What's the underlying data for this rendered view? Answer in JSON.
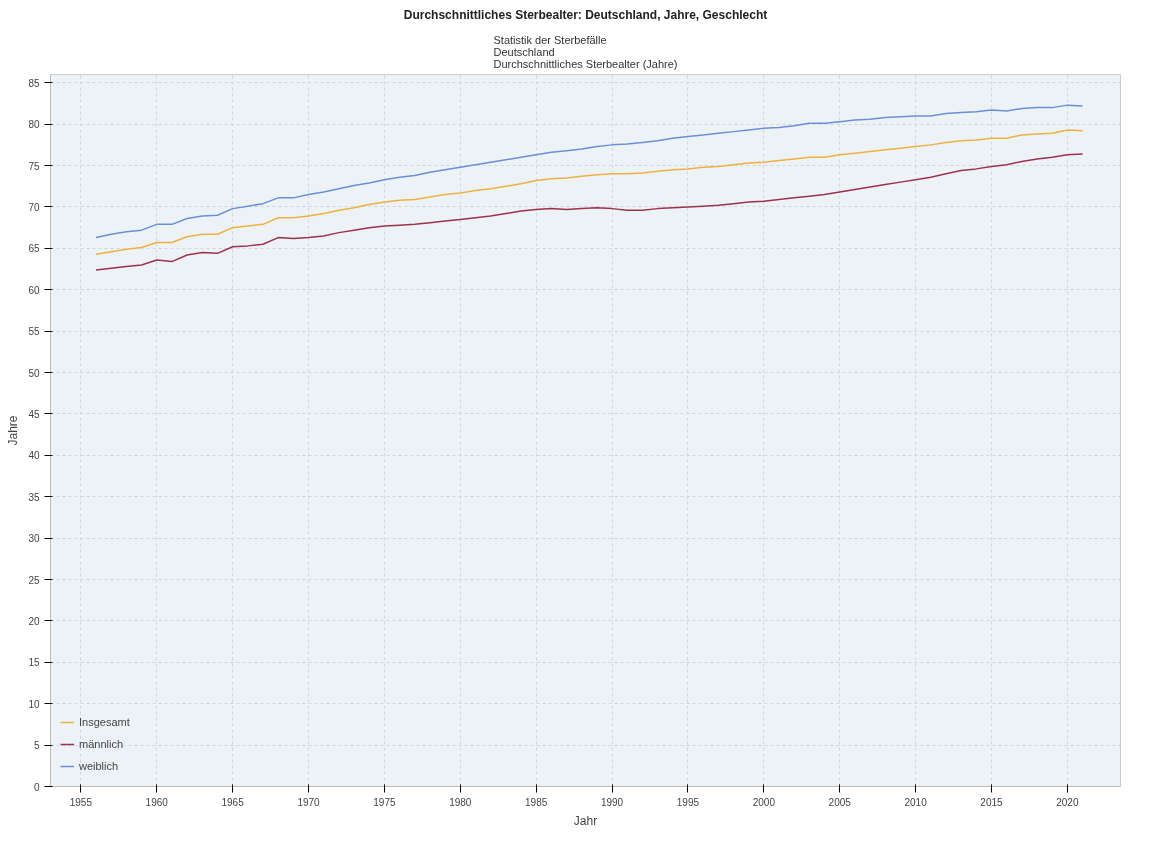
{
  "chart_data": {
    "type": "line",
    "title": "Durchschnittliches Sterbealter: Deutschland, Jahre, Geschlecht",
    "subtitle": "Statistik der Sterbefälle\nDeutschland\nDurchschnittliches Sterbealter (Jahre)",
    "xlabel": "Jahr",
    "ylabel": "Jahre",
    "x": [
      1956,
      1957,
      1958,
      1959,
      1960,
      1961,
      1962,
      1963,
      1964,
      1965,
      1966,
      1967,
      1968,
      1969,
      1970,
      1971,
      1972,
      1973,
      1974,
      1975,
      1976,
      1977,
      1978,
      1979,
      1980,
      1981,
      1982,
      1983,
      1984,
      1985,
      1986,
      1987,
      1988,
      1989,
      1990,
      1991,
      1992,
      1993,
      1994,
      1995,
      1996,
      1997,
      1998,
      1999,
      2000,
      2001,
      2002,
      2003,
      2004,
      2005,
      2006,
      2007,
      2008,
      2009,
      2010,
      2011,
      2012,
      2013,
      2014,
      2015,
      2016,
      2017,
      2018,
      2019,
      2020,
      2021
    ],
    "series": [
      {
        "name": "Insgesamt",
        "color": "#f0b040",
        "values": [
          64.3,
          64.6,
          64.9,
          65.1,
          65.7,
          65.7,
          66.4,
          66.7,
          66.7,
          67.5,
          67.7,
          67.9,
          68.7,
          68.7,
          68.9,
          69.2,
          69.6,
          69.9,
          70.3,
          70.6,
          70.8,
          70.9,
          71.2,
          71.5,
          71.7,
          72.0,
          72.2,
          72.5,
          72.8,
          73.2,
          73.4,
          73.5,
          73.7,
          73.9,
          74.0,
          74.0,
          74.1,
          74.3,
          74.5,
          74.6,
          74.8,
          74.9,
          75.1,
          75.3,
          75.4,
          75.6,
          75.8,
          76.0,
          76.0,
          76.3,
          76.5,
          76.7,
          76.9,
          77.1,
          77.3,
          77.5,
          77.8,
          78.0,
          78.1,
          78.3,
          78.3,
          78.7,
          78.8,
          78.9,
          79.3,
          79.2
        ]
      },
      {
        "name": "männlich",
        "color": "#a03050",
        "values": [
          62.4,
          62.6,
          62.8,
          63.0,
          63.6,
          63.4,
          64.2,
          64.5,
          64.4,
          65.2,
          65.3,
          65.5,
          66.3,
          66.2,
          66.3,
          66.5,
          66.9,
          67.2,
          67.5,
          67.7,
          67.8,
          67.9,
          68.1,
          68.3,
          68.5,
          68.7,
          68.9,
          69.2,
          69.5,
          69.7,
          69.8,
          69.7,
          69.8,
          69.9,
          69.8,
          69.6,
          69.6,
          69.8,
          69.9,
          70.0,
          70.1,
          70.2,
          70.4,
          70.6,
          70.7,
          70.9,
          71.1,
          71.3,
          71.5,
          71.8,
          72.1,
          72.4,
          72.7,
          73.0,
          73.3,
          73.6,
          74.0,
          74.4,
          74.6,
          74.9,
          75.1,
          75.5,
          75.8,
          76.0,
          76.3,
          76.4
        ]
      },
      {
        "name": "weiblich",
        "color": "#6a8fd8",
        "values": [
          66.3,
          66.7,
          67.0,
          67.2,
          67.9,
          67.9,
          68.6,
          68.9,
          69.0,
          69.8,
          70.1,
          70.4,
          71.1,
          71.1,
          71.5,
          71.8,
          72.2,
          72.6,
          72.9,
          73.3,
          73.6,
          73.8,
          74.2,
          74.5,
          74.8,
          75.1,
          75.4,
          75.7,
          76.0,
          76.3,
          76.6,
          76.8,
          77.0,
          77.3,
          77.5,
          77.6,
          77.8,
          78.0,
          78.3,
          78.5,
          78.7,
          78.9,
          79.1,
          79.3,
          79.5,
          79.6,
          79.8,
          80.1,
          80.1,
          80.3,
          80.5,
          80.6,
          80.8,
          80.9,
          81.0,
          81.0,
          81.3,
          81.4,
          81.5,
          81.7,
          81.6,
          81.9,
          82.0,
          82.0,
          82.3,
          82.2
        ]
      }
    ],
    "xlim": [
      1953,
      2023.5
    ],
    "ylim": [
      0,
      86
    ],
    "xticks": [
      1955,
      1960,
      1965,
      1970,
      1975,
      1980,
      1985,
      1990,
      1995,
      2000,
      2005,
      2010,
      2015,
      2020
    ],
    "yticks": [
      0,
      5,
      10,
      15,
      20,
      25,
      30,
      35,
      40,
      45,
      50,
      55,
      60,
      65,
      70,
      75,
      80,
      85
    ],
    "grid": true,
    "legend": "bottom left",
    "marker": "none",
    "line_style": "solid"
  }
}
